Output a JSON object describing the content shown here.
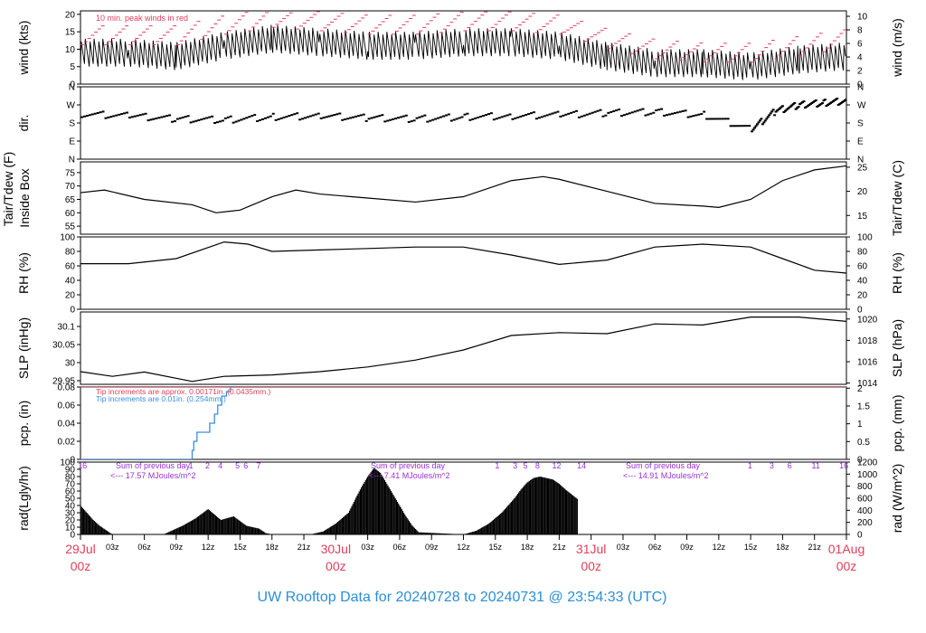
{
  "footer": {
    "title": "UW Rooftop Data for 20240728  to  20240731 @ 23:54:33  (UTC)",
    "color": "#2a8fd6"
  },
  "colors": {
    "red": "#e0405a",
    "blue": "#3a8ee0",
    "purple": "#9b30d9",
    "black": "#000000"
  },
  "chart_data": [
    {
      "type": "line",
      "panel": "wind",
      "ylabel": "wind (kts)",
      "ylabel_right": "wind (m/s)",
      "yticks": [
        0,
        5,
        10,
        15,
        20
      ],
      "yticks_right": [
        0,
        2,
        4,
        6,
        8,
        10
      ],
      "ylim": [
        0,
        21
      ],
      "annotation": "10 min. peak winds in red",
      "series": [
        {
          "color": "#000000",
          "x": [
            0,
            6,
            12,
            18,
            24,
            30,
            36,
            42,
            48,
            54,
            60,
            66,
            72,
            78,
            84,
            90,
            96
          ],
          "y": [
            9,
            9,
            8,
            11,
            13,
            12,
            11,
            11,
            12,
            12,
            11,
            8,
            6,
            6,
            5,
            7,
            8
          ]
        },
        {
          "color": "#e0405a",
          "x": [
            0,
            6,
            12,
            18,
            24,
            30,
            36,
            42,
            48,
            54,
            60,
            66,
            72,
            78,
            84,
            90,
            96
          ],
          "y": [
            14,
            14,
            14,
            17,
            19,
            18,
            17,
            17,
            18,
            18,
            17,
            13,
            10,
            9,
            9,
            11,
            13
          ]
        }
      ]
    },
    {
      "type": "scatter",
      "panel": "direction",
      "ylabel": "dir.",
      "yticks_labels": [
        "N",
        "E",
        "S",
        "W",
        "N"
      ],
      "yticks_labels_right": [
        "N",
        "E",
        "S",
        "W",
        "N"
      ],
      "ylim": [
        0,
        360
      ],
      "series": [
        {
          "color": "#000000",
          "x": [
            0,
            6,
            12,
            18,
            24,
            30,
            36,
            42,
            48,
            54,
            60,
            66,
            72,
            78,
            84,
            87,
            90,
            93,
            96
          ],
          "y": [
            225,
            215,
            200,
            195,
            210,
            215,
            205,
            200,
            210,
            215,
            220,
            230,
            235,
            220,
            150,
            240,
            270,
            280,
            290
          ]
        }
      ]
    },
    {
      "type": "line",
      "panel": "temperature",
      "ylabel": "Tair/Tdew (F)",
      "ylabel2": "Inside Box",
      "ylabel_right": "Tair/Tdew (C)",
      "yticks": [
        55,
        60,
        65,
        70,
        75
      ],
      "yticks_right": [
        15,
        20,
        25
      ],
      "ylim": [
        52,
        79
      ],
      "series": [
        {
          "color": "#000000",
          "x": [
            0,
            3,
            8,
            14,
            17,
            20,
            24,
            27,
            30,
            36,
            42,
            48,
            54,
            58,
            60,
            66,
            72,
            78,
            80,
            84,
            88,
            92,
            96
          ],
          "y": [
            67.5,
            68.5,
            65,
            63,
            60,
            61,
            66,
            68.5,
            67,
            65.5,
            64,
            66,
            72,
            73.5,
            72.5,
            68,
            63.5,
            62.5,
            62,
            65,
            72,
            76,
            77.5
          ]
        }
      ]
    },
    {
      "type": "line",
      "panel": "humidity",
      "ylabel": "RH (%)",
      "ylabel_right": "RH (%)",
      "yticks": [
        0,
        20,
        40,
        60,
        80,
        100
      ],
      "yticks_right": [
        0,
        20,
        40,
        60,
        80,
        100
      ],
      "ylim": [
        0,
        100
      ],
      "series": [
        {
          "color": "#000000",
          "x": [
            0,
            6,
            12,
            18,
            21,
            24,
            30,
            36,
            42,
            48,
            54,
            60,
            66,
            72,
            78,
            84,
            88,
            92,
            96
          ],
          "y": [
            63,
            63,
            70,
            93,
            90,
            80,
            82,
            84,
            86,
            86,
            75,
            62,
            68,
            86,
            90,
            86,
            70,
            54,
            50
          ]
        }
      ]
    },
    {
      "type": "line",
      "panel": "pressure",
      "ylabel": "SLP (inHg)",
      "ylabel_right": "SLP (hPa)",
      "yticks": [
        29.95,
        30.0,
        30.05,
        30.1
      ],
      "yticks_right": [
        1014,
        1016,
        1018,
        1020
      ],
      "ylim": [
        29.94,
        30.14
      ],
      "series": [
        {
          "color": "#000000",
          "x": [
            0,
            4,
            8,
            14,
            18,
            24,
            30,
            36,
            42,
            48,
            54,
            60,
            66,
            72,
            78,
            84,
            90,
            96
          ],
          "y": [
            29.975,
            29.962,
            29.974,
            29.948,
            29.962,
            29.966,
            29.975,
            29.988,
            30.007,
            30.035,
            30.075,
            30.083,
            30.08,
            30.107,
            30.104,
            30.126,
            30.126,
            30.114
          ]
        }
      ]
    },
    {
      "type": "line",
      "panel": "precipitation",
      "ylabel": "pcp. (in)",
      "ylabel_right": "pcp. (mm)",
      "yticks": [
        0.0,
        0.02,
        0.04,
        0.06,
        0.08
      ],
      "yticks_right": [
        0,
        0.5,
        1,
        1.5,
        2
      ],
      "ylim": [
        0,
        0.08
      ],
      "notes": [
        {
          "text": "Tip increments are approx. 0.00171in. (0.0435mm.)",
          "color": "#e0405a"
        },
        {
          "text": "Tip increments are 0.01in. (0.254mm.)",
          "color": "#3a8ee0"
        }
      ],
      "series": [
        {
          "color": "#3a8ee0",
          "x": [
            0,
            13.8,
            14.0,
            14.2,
            14.6,
            16.2,
            16.8,
            17.2,
            17.7,
            18.3,
            18.8,
            96
          ],
          "y": [
            0,
            0,
            0.01,
            0.02,
            0.03,
            0.04,
            0.05,
            0.06,
            0.07,
            0.075,
            0.08,
            0.08
          ]
        },
        {
          "color": "#e0405a",
          "x": [
            0,
            96
          ],
          "y": [
            0.08,
            0.08
          ]
        }
      ]
    },
    {
      "type": "bar",
      "panel": "radiation",
      "ylabel": "rad(Lgly/hr)",
      "ylabel_right": "rad (W/m^2)",
      "yticks": [
        0,
        10,
        20,
        30,
        40,
        50,
        60,
        70,
        80,
        90,
        100
      ],
      "yticks_right": [
        0,
        200,
        400,
        600,
        800,
        1000,
        1200
      ],
      "ylim": [
        0,
        100
      ],
      "summaries": [
        {
          "label": "Sum of previous day",
          "text": "<--- 17.57 MJoules/m^2"
        },
        {
          "label": "Sum of previous day",
          "text": "<--- 7.41 MJoules/m^2"
        },
        {
          "label": "Sum of previous day",
          "text": "<--- 14.91 MJoules/m^2"
        }
      ],
      "hour_marks": [
        {
          "text": "16",
          "x": 0.3
        },
        {
          "text": "1",
          "x": 17.3
        },
        {
          "text": "2",
          "x": 19.9
        },
        {
          "text": "4",
          "x": 21.9
        },
        {
          "text": "5",
          "x": 24.6
        },
        {
          "text": "6",
          "x": 25.9
        },
        {
          "text": "7",
          "x": 27.9
        },
        {
          "text": "1",
          "x": 65.3
        },
        {
          "text": "3",
          "x": 68.1
        },
        {
          "text": "5",
          "x": 69.7
        },
        {
          "text": "8",
          "x": 71.6
        },
        {
          "text": "12",
          "x": 74.6
        },
        {
          "text": "14",
          "x": 78.5
        },
        {
          "text": "1",
          "x": 104.9
        },
        {
          "text": "3",
          "x": 108.3
        },
        {
          "text": "6",
          "x": 111.1
        },
        {
          "text": "11",
          "x": 115.2
        },
        {
          "text": "16",
          "x": 119.6
        }
      ],
      "series": [
        {
          "color": "#000000",
          "x": [
            0,
            1,
            2,
            3,
            4,
            5,
            13,
            14,
            16,
            18,
            20,
            22,
            24,
            26,
            28,
            29,
            30,
            36,
            38,
            40,
            42,
            43,
            44,
            45,
            46,
            47,
            48,
            49,
            50,
            51,
            52,
            53,
            60,
            62,
            64,
            66,
            68,
            69,
            70,
            71,
            72,
            73,
            74,
            75,
            76,
            77,
            78
          ],
          "y": [
            40,
            30,
            20,
            12,
            6,
            0,
            0,
            4,
            12,
            22,
            35,
            20,
            25,
            12,
            8,
            2,
            0,
            0,
            4,
            15,
            30,
            48,
            65,
            80,
            92,
            85,
            70,
            55,
            40,
            25,
            12,
            3,
            0,
            5,
            15,
            30,
            50,
            62,
            72,
            78,
            80,
            78,
            76,
            70,
            62,
            55,
            48
          ]
        }
      ]
    },
    {
      "type": "axis",
      "panel": "time-axis",
      "xlim": [
        0,
        96
      ],
      "ticks": [
        {
          "x": 0,
          "top": "29Jul",
          "bottom": "00z",
          "major": true
        },
        {
          "x": 3,
          "label": "03z"
        },
        {
          "x": 6,
          "label": "06z"
        },
        {
          "x": 9,
          "label": "09z"
        },
        {
          "x": 12,
          "label": "12z"
        },
        {
          "x": 15,
          "label": "15z"
        },
        {
          "x": 18,
          "label": "18z"
        },
        {
          "x": 21,
          "label": "21z"
        },
        {
          "x": 24,
          "top": "30Jul",
          "bottom": "00z",
          "major": true
        },
        {
          "x": 27,
          "label": "03z"
        },
        {
          "x": 30,
          "label": "06z"
        },
        {
          "x": 33,
          "label": "09z"
        },
        {
          "x": 36,
          "label": "12z"
        },
        {
          "x": 39,
          "label": "15z"
        },
        {
          "x": 42,
          "label": "18z"
        },
        {
          "x": 45,
          "label": "21z"
        },
        {
          "x": 48,
          "top": "31Jul",
          "bottom": "00z",
          "major": true
        },
        {
          "x": 51,
          "label": "03z"
        },
        {
          "x": 54,
          "label": "06z"
        },
        {
          "x": 57,
          "label": "09z"
        },
        {
          "x": 60,
          "label": "12z"
        },
        {
          "x": 63,
          "label": "15z"
        },
        {
          "x": 66,
          "label": "18z"
        },
        {
          "x": 69,
          "label": "21z"
        },
        {
          "x": 72,
          "top": "01Aug",
          "bottom": "00z",
          "major": true
        }
      ]
    }
  ]
}
